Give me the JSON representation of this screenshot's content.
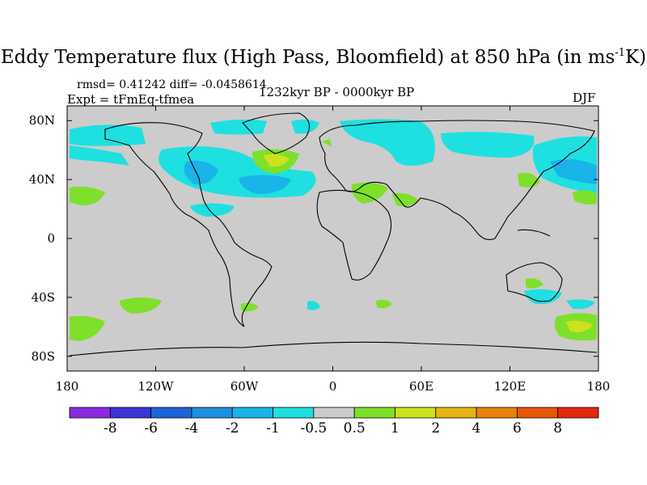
{
  "title": {
    "main": "Eddy Temperature flux (High Pass, Bloomfield) at 850 hPa (in ms",
    "sup": "-1",
    "tail": "K)"
  },
  "stats": "rmsd= 0.41242 diff= -0.0458614",
  "experiment": "Expt = tFmEq-tfmea",
  "period": "1232kyr BP - 0000kyr BP",
  "season": "DJF",
  "lat_ticks": [
    {
      "label": "80N",
      "lat": 80
    },
    {
      "label": "40N",
      "lat": 40
    },
    {
      "label": "0",
      "lat": 0
    },
    {
      "label": "40S",
      "lat": -40
    },
    {
      "label": "80S",
      "lat": -80
    }
  ],
  "lon_ticks": [
    {
      "label": "180",
      "lon": -180
    },
    {
      "label": "120W",
      "lon": -120
    },
    {
      "label": "60W",
      "lon": -60
    },
    {
      "label": "0",
      "lon": 0
    },
    {
      "label": "60E",
      "lon": 60
    },
    {
      "label": "120E",
      "lon": 120
    },
    {
      "label": "180",
      "lon": 180
    }
  ],
  "colorbar": {
    "labels": [
      "-8",
      "-6",
      "-4",
      "-2",
      "-1",
      "-0.5",
      "0.5",
      "1",
      "2",
      "4",
      "6",
      "8"
    ],
    "colors": [
      "#8a2be2",
      "#3b35d6",
      "#1e64d8",
      "#1e90e0",
      "#19b4e8",
      "#1ee0e0",
      "#cccccc",
      "#7ee02a",
      "#cde11e",
      "#e6b414",
      "#e8820c",
      "#e8560a",
      "#e02a0a"
    ]
  }
}
